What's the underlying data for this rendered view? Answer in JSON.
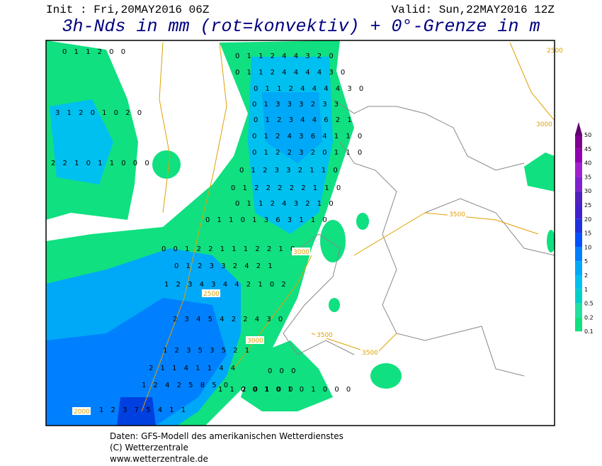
{
  "header": {
    "init": "Init : Fri,20MAY2016 06Z",
    "valid": "Valid: Sun,22MAY2016 12Z",
    "title": "3h-Nds in mm (rot=konvektiv) + 0°-Grenze in m"
  },
  "legend": {
    "levels": [
      "50",
      "45",
      "40",
      "35",
      "30",
      "25",
      "20",
      "15",
      "10",
      "5",
      "2",
      "1",
      "0.5",
      "0.2",
      "0.1"
    ]
  },
  "map": {
    "contour_labels": [
      "2500",
      "3000",
      "3500",
      "3500",
      "3500",
      "3000",
      "2500",
      "2000",
      "3000"
    ],
    "grid_rows": [
      "0 1 1 2 4 4 3 2 0",
      "0 1 1 2 4 4 4 4 3 0",
      "0 1 1 2 4 4 4 4 3 0",
      "0 1 3 3 3 2 3 3",
      "0 1 2 3 4 4 6 2 1",
      "0 1 2 4 3 6 4 1 1 0",
      "0 1 2 2 3 2 0 1 1 0",
      "0 1 2 3 3 2 1 1 0",
      "0 1 2 2 2 2 2 1 1 0",
      "0 1 1 2 4 3 2 1 0",
      "0 1 1 0 1 3 6 3 1 1 0",
      "0 0 1 2 2 1 1 1 2 2 1 0",
      "0 1 2 3 3 2 4 2 1",
      "1 2 3 4 3 4 4 2 1 0 2",
      "2 3 4 5 4 2 2 4 3 0",
      "1 2 3 5 3 5 2 1",
      "2 1 1 4 1 1 4 4",
      "1 2 4 2 5 8 5 0",
      "1 2 3 7 5 4 1 1",
      "1 1 2 0 1 0 0",
      "0 0 1 0 1 0 1 0 0 0",
      "0 0 0",
      "0 1 1 2 0 0",
      "3 1 2 0 1 0 2 0",
      "2 2 1 0 1 1 0 0 0"
    ]
  },
  "footer": {
    "line1": "Daten: GFS-Modell des amerikanischen Wetterdienstes",
    "line2": "(C) Wetterzentrale",
    "line3": "www.wetterzentrale.de"
  }
}
